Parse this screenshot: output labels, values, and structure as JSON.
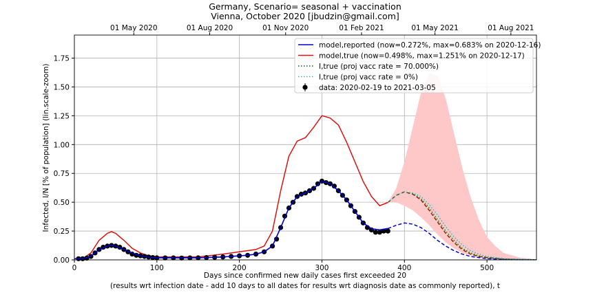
{
  "chart_data": {
    "type": "line",
    "title": "Germany, Scenario= seasonal + vaccination",
    "subtitle": "Vienna, October 2020 [jbudzin@gmail.com]",
    "xlabel": "Days since confirmed new daily cases first exceeded 20",
    "xlabel2": "(results wrt infection date - add 10 days to all dates for results wrt diagnosis date as commonly reported), t",
    "ylabel": "Infected, I/N [% of population] (lin.scale-zoom)",
    "xlim": [
      0,
      560
    ],
    "ylim": [
      0,
      1.95
    ],
    "grid": true,
    "legend_position": "upper-right",
    "x_ticks": [
      0,
      100,
      200,
      300,
      400,
      500
    ],
    "x_tick_labels": [
      "0",
      "100",
      "200",
      "300",
      "400",
      "500"
    ],
    "y_ticks": [
      0.0,
      0.25,
      0.5,
      0.75,
      1.0,
      1.25,
      1.5,
      1.75
    ],
    "y_tick_labels": [
      "0.00",
      "0.25",
      "0.50",
      "0.75",
      "1.00",
      "1.25",
      "1.50",
      "1.75"
    ],
    "top_axis_ticks": [
      72,
      164,
      256,
      348,
      437,
      529
    ],
    "top_axis_labels": [
      "01 May 2020",
      "01 Aug 2020",
      "01 Nov 2020",
      "01 Feb 2021",
      "01 May 2021",
      "01 Aug 2021"
    ],
    "legend": [
      {
        "label": "model,reported (now=0.272%, max=0.683% on 2020-12-16)",
        "color": "#0000cc",
        "style": "solid"
      },
      {
        "label": "model,true (now=0.498%, max=1.251% on 2020-12-17)",
        "color": "#dd1111",
        "style": "solid"
      },
      {
        "label": "I,true (proj vacc rate = 70.000%)",
        "color": "#008000",
        "style": "dotted"
      },
      {
        "label": "I,true (proj vacc rate = 0%)",
        "color": "#17becf",
        "style": "dotted"
      },
      {
        "label": "data: 2020-02-19 to 2021-03-05",
        "color": "#000000",
        "style": "marker"
      }
    ],
    "series": [
      {
        "key": "reported",
        "color": "#0000cc",
        "x": [
          0,
          10,
          20,
          30,
          40,
          45,
          50,
          60,
          70,
          80,
          90,
          100,
          150,
          180,
          210,
          220,
          230,
          240,
          250,
          260,
          270,
          280,
          290,
          300,
          310,
          320,
          330,
          340,
          350,
          360,
          370,
          380
        ],
        "y": [
          0.01,
          0.01,
          0.03,
          0.09,
          0.12,
          0.125,
          0.12,
          0.09,
          0.06,
          0.035,
          0.022,
          0.018,
          0.018,
          0.025,
          0.04,
          0.05,
          0.07,
          0.12,
          0.28,
          0.45,
          0.55,
          0.58,
          0.62,
          0.683,
          0.66,
          0.6,
          0.52,
          0.42,
          0.32,
          0.27,
          0.26,
          0.272
        ]
      },
      {
        "key": "true",
        "color": "#dd1111",
        "x": [
          0,
          10,
          20,
          30,
          40,
          45,
          50,
          60,
          70,
          80,
          90,
          100,
          150,
          180,
          200,
          220,
          230,
          240,
          250,
          260,
          270,
          280,
          290,
          300,
          310,
          320,
          330,
          340,
          350,
          360,
          370,
          380
        ],
        "y": [
          0.01,
          0.01,
          0.06,
          0.17,
          0.23,
          0.245,
          0.23,
          0.17,
          0.1,
          0.06,
          0.035,
          0.025,
          0.025,
          0.05,
          0.07,
          0.09,
          0.12,
          0.25,
          0.6,
          0.9,
          1.03,
          1.06,
          1.15,
          1.251,
          1.23,
          1.17,
          1.02,
          0.85,
          0.68,
          0.55,
          0.47,
          0.498
        ]
      },
      {
        "key": "reported_proj",
        "color": "#0000cc",
        "dash": "dashed",
        "x": [
          380,
          390,
          400,
          410,
          420,
          430,
          440,
          450,
          460,
          470,
          480,
          490,
          500,
          520,
          540,
          560
        ],
        "y": [
          0.272,
          0.3,
          0.32,
          0.31,
          0.28,
          0.23,
          0.17,
          0.12,
          0.08,
          0.05,
          0.03,
          0.02,
          0.01,
          0.005,
          0.002,
          0.001
        ]
      },
      {
        "key": "true_proj",
        "color": "#8b2500",
        "dash": "dashed",
        "x": [
          380,
          390,
          400,
          410,
          420,
          430,
          440,
          450,
          460,
          470,
          480,
          490,
          500,
          520,
          540,
          560
        ],
        "y": [
          0.498,
          0.56,
          0.59,
          0.57,
          0.52,
          0.43,
          0.33,
          0.23,
          0.15,
          0.09,
          0.05,
          0.03,
          0.02,
          0.007,
          0.003,
          0.001
        ]
      },
      {
        "key": "vacc70",
        "color": "#008000",
        "dash": "dotted",
        "x": [
          380,
          390,
          400,
          410,
          420,
          430,
          440,
          450,
          460,
          470,
          480,
          490,
          500,
          520,
          540,
          560
        ],
        "y": [
          0.498,
          0.56,
          0.59,
          0.575,
          0.53,
          0.45,
          0.35,
          0.25,
          0.17,
          0.1,
          0.06,
          0.035,
          0.02,
          0.008,
          0.003,
          0.001
        ]
      },
      {
        "key": "vacc0",
        "color": "#17becf",
        "dash": "dotted",
        "x": [
          380,
          390,
          400,
          410,
          420,
          430,
          440,
          450,
          460,
          470,
          480,
          490,
          500,
          520,
          540,
          560
        ],
        "y": [
          0.498,
          0.56,
          0.59,
          0.58,
          0.55,
          0.48,
          0.39,
          0.29,
          0.2,
          0.13,
          0.08,
          0.05,
          0.03,
          0.01,
          0.004,
          0.001
        ]
      }
    ],
    "band": {
      "color": "#ffc8c8",
      "x": [
        380,
        390,
        400,
        410,
        420,
        430,
        440,
        450,
        460,
        470,
        480,
        490,
        500,
        510,
        520,
        540,
        560
      ],
      "upper": [
        0.498,
        0.62,
        0.85,
        1.15,
        1.45,
        1.62,
        1.6,
        1.4,
        1.1,
        0.8,
        0.55,
        0.35,
        0.2,
        0.12,
        0.06,
        0.02,
        0.005
      ],
      "lower": [
        0.498,
        0.5,
        0.47,
        0.43,
        0.37,
        0.3,
        0.22,
        0.15,
        0.1,
        0.06,
        0.04,
        0.02,
        0.01,
        0.005,
        0.002,
        0.001,
        0.0
      ]
    },
    "data_points": {
      "color": "#000000",
      "x": [
        5,
        10,
        15,
        20,
        25,
        30,
        35,
        40,
        45,
        50,
        55,
        60,
        65,
        70,
        75,
        80,
        85,
        90,
        95,
        100,
        110,
        120,
        130,
        140,
        150,
        160,
        170,
        180,
        190,
        200,
        210,
        220,
        230,
        240,
        245,
        250,
        255,
        260,
        265,
        270,
        275,
        280,
        285,
        290,
        295,
        300,
        305,
        310,
        315,
        320,
        325,
        330,
        335,
        340,
        345,
        350,
        355,
        360,
        365,
        370,
        375,
        380
      ],
      "y": [
        0.01,
        0.01,
        0.015,
        0.03,
        0.06,
        0.09,
        0.11,
        0.12,
        0.125,
        0.12,
        0.11,
        0.09,
        0.07,
        0.05,
        0.04,
        0.035,
        0.03,
        0.025,
        0.02,
        0.018,
        0.017,
        0.017,
        0.016,
        0.017,
        0.018,
        0.02,
        0.022,
        0.025,
        0.03,
        0.035,
        0.04,
        0.05,
        0.07,
        0.12,
        0.18,
        0.28,
        0.38,
        0.45,
        0.5,
        0.55,
        0.57,
        0.58,
        0.6,
        0.62,
        0.66,
        0.683,
        0.67,
        0.66,
        0.64,
        0.6,
        0.56,
        0.52,
        0.47,
        0.42,
        0.37,
        0.32,
        0.28,
        0.26,
        0.24,
        0.24,
        0.25,
        0.25
      ]
    }
  }
}
